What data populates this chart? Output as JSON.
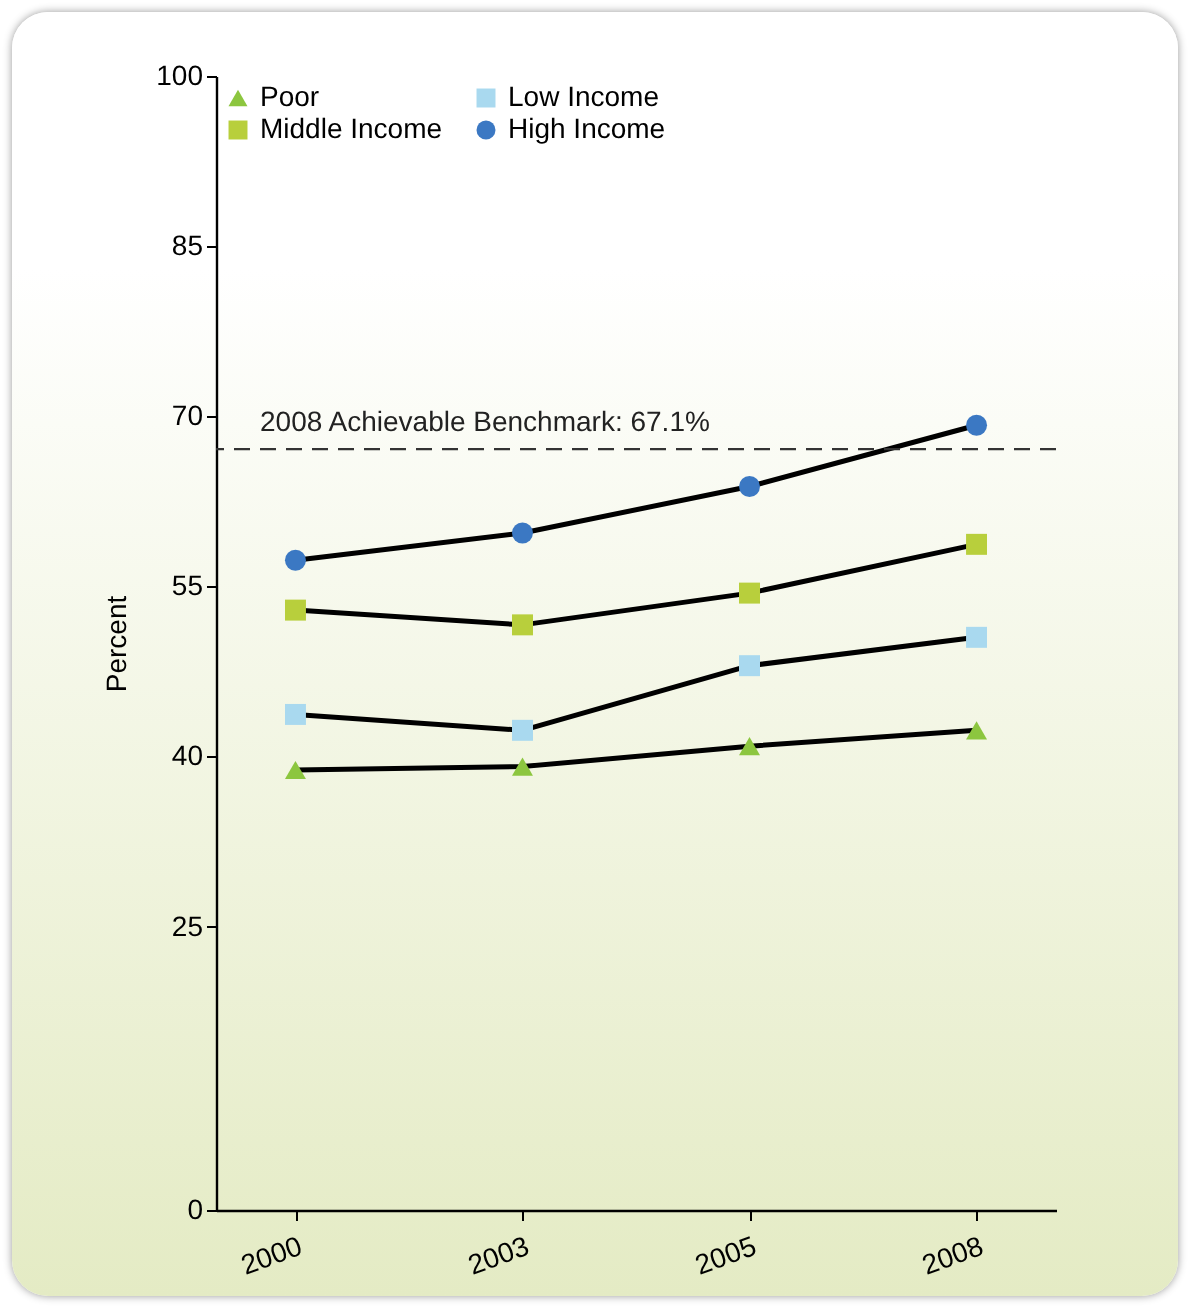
{
  "chart_data": {
    "type": "line",
    "ylabel": "Percent",
    "categories": [
      "2000",
      "2003",
      "2005",
      "2008"
    ],
    "series": [
      {
        "name": "Poor",
        "color": "#8cc63f",
        "marker": "triangle",
        "values": [
          38.8,
          39.1,
          40.9,
          42.3
        ]
      },
      {
        "name": "Middle Income",
        "color": "#b8cf3c",
        "marker": "square",
        "values": [
          52.9,
          51.6,
          54.4,
          58.7
        ]
      },
      {
        "name": "Low Income",
        "color": "#a9d9ef",
        "marker": "square",
        "values": [
          43.7,
          42.3,
          48.0,
          50.5
        ]
      },
      {
        "name": "High Income",
        "color": "#3b78c3",
        "marker": "circle",
        "values": [
          57.3,
          59.7,
          63.8,
          69.2
        ]
      }
    ],
    "ylim": [
      0,
      100
    ],
    "yticks": [
      0,
      25,
      40,
      55,
      70,
      85,
      100
    ],
    "ref_lines": [
      {
        "axis": "y",
        "value": 67.1,
        "label": "2008 Achievable Benchmark: 67.1%",
        "line_style": "dashed",
        "color": "#333333"
      }
    ],
    "legend": "top left",
    "grid": false,
    "line_style": "solid"
  }
}
